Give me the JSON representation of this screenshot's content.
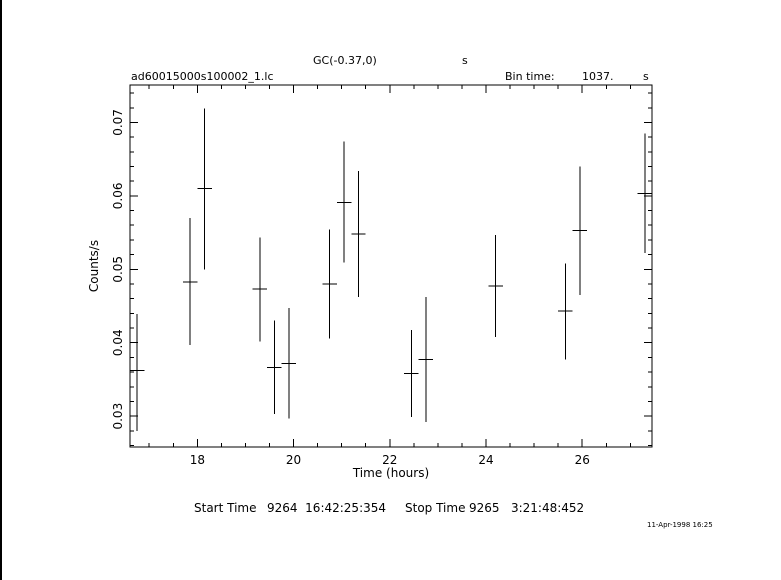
{
  "header": {
    "source": "GC(-0.37,0)",
    "s_unit": "s",
    "filename": "ad60015000s100002_1.lc",
    "bin_time_label": "Bin time:",
    "bin_time_value": "1037.",
    "bin_time_unit": "s"
  },
  "footer": {
    "start_time_label": "Start Time",
    "start_time_value": "9264  16:42:25:354",
    "stop_time_label": "Stop Time",
    "stop_time_value": "9265   3:21:48:452",
    "stamp": "11-Apr-1998 16:25"
  },
  "chart_data": {
    "type": "scatter",
    "xlabel": "Time (hours)",
    "ylabel": "Counts/s",
    "xlim": [
      16.6,
      27.45
    ],
    "ylim": [
      0.0258,
      0.0751
    ],
    "x_ticks": [
      18,
      20,
      22,
      24,
      26
    ],
    "y_ticks": [
      0.03,
      0.04,
      0.05,
      0.06,
      0.07
    ],
    "x_tick_labels": [
      "18",
      "20",
      "22",
      "24",
      "26"
    ],
    "y_tick_labels": [
      "0.03",
      "0.04",
      "0.05",
      "0.06",
      "0.07"
    ],
    "points": [
      {
        "x": 16.75,
        "xerr": 0.15,
        "y": 0.0362,
        "ylo": 0.028,
        "yhi": 0.0439
      },
      {
        "x": 17.85,
        "xerr": 0.15,
        "y": 0.0483,
        "ylo": 0.0397,
        "yhi": 0.057
      },
      {
        "x": 18.15,
        "xerr": 0.15,
        "y": 0.061,
        "ylo": 0.05,
        "yhi": 0.0719
      },
      {
        "x": 19.3,
        "xerr": 0.15,
        "y": 0.0473,
        "ylo": 0.0402,
        "yhi": 0.0543
      },
      {
        "x": 19.6,
        "xerr": 0.15,
        "y": 0.0366,
        "ylo": 0.0303,
        "yhi": 0.043
      },
      {
        "x": 19.9,
        "xerr": 0.15,
        "y": 0.0372,
        "ylo": 0.0297,
        "yhi": 0.0447
      },
      {
        "x": 20.75,
        "xerr": 0.15,
        "y": 0.048,
        "ylo": 0.0406,
        "yhi": 0.0554
      },
      {
        "x": 21.05,
        "xerr": 0.15,
        "y": 0.0591,
        "ylo": 0.0509,
        "yhi": 0.0674
      },
      {
        "x": 21.35,
        "xerr": 0.15,
        "y": 0.0548,
        "ylo": 0.0462,
        "yhi": 0.0634
      },
      {
        "x": 22.45,
        "xerr": 0.15,
        "y": 0.0358,
        "ylo": 0.0299,
        "yhi": 0.0417
      },
      {
        "x": 22.75,
        "xerr": 0.15,
        "y": 0.0377,
        "ylo": 0.0292,
        "yhi": 0.0462
      },
      {
        "x": 24.2,
        "xerr": 0.15,
        "y": 0.0477,
        "ylo": 0.0408,
        "yhi": 0.0547
      },
      {
        "x": 25.65,
        "xerr": 0.15,
        "y": 0.0443,
        "ylo": 0.0377,
        "yhi": 0.0508
      },
      {
        "x": 25.95,
        "xerr": 0.15,
        "y": 0.0553,
        "ylo": 0.0465,
        "yhi": 0.064
      },
      {
        "x": 27.3,
        "xerr": 0.15,
        "y": 0.0603,
        "ylo": 0.0522,
        "yhi": 0.0685
      }
    ]
  }
}
